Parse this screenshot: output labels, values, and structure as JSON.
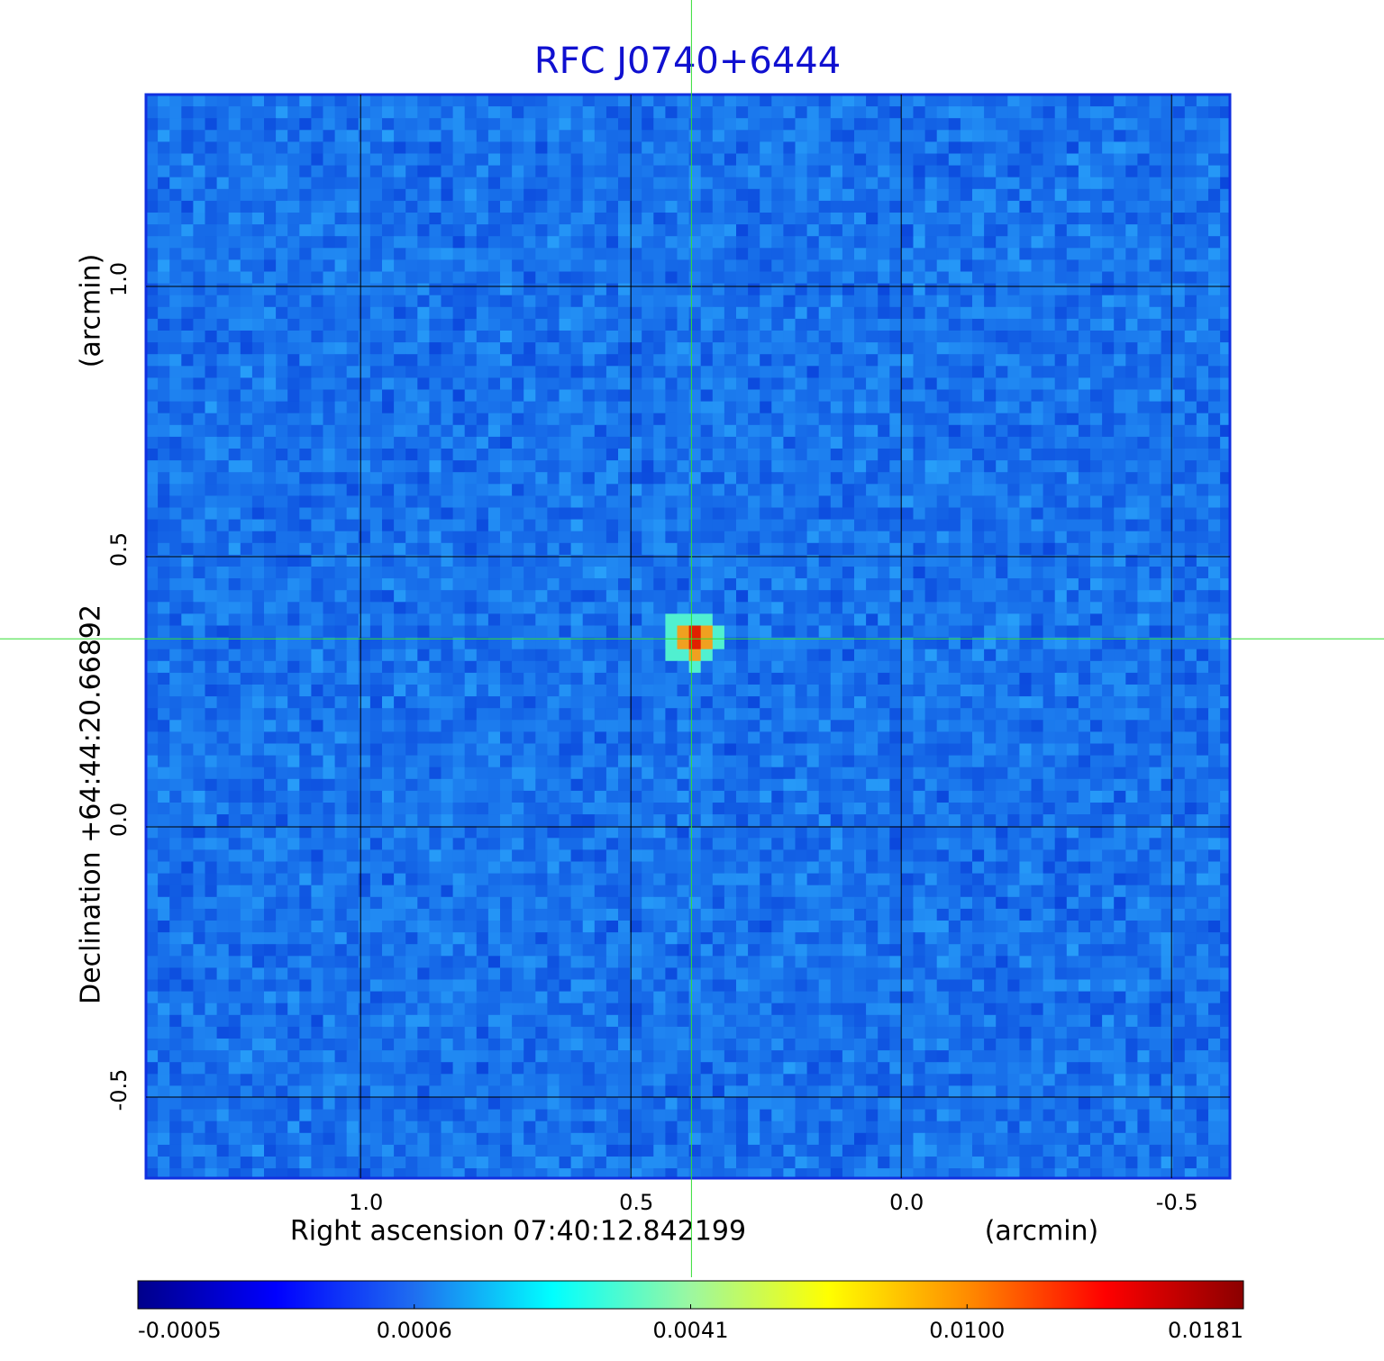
{
  "chart_data": {
    "type": "image",
    "title": "RFC J0740+6444",
    "xlabel": "Right ascension  07:40:12.842199",
    "xunit": "(arcmin)",
    "ylabel": "Declination  +64:44:20.66892",
    "yunit": "(arcmin)",
    "xlim": [
      1.397,
      -0.608
    ],
    "xticks": [
      {
        "value": 1,
        "label": "1.0"
      },
      0.5,
      {
        "value": 0,
        "label": "0.0"
      },
      -0.5
    ],
    "ylim": [
      -0.65,
      1.355
    ],
    "yticks": [
      {
        "value": 1,
        "label": "1.0"
      },
      0.5,
      {
        "value": 0,
        "label": "0.0"
      },
      -0.5
    ],
    "grid": true,
    "frame_color": "#1030e0",
    "title_color": "#1010d0",
    "marker": {
      "x": 0.388,
      "y": 0.348,
      "color": "#33dd33"
    },
    "colorbar": {
      "ticks": [
        -0.0005,
        0.0006,
        0.0041,
        {
          "value": 0.01,
          "label": "0.0100"
        },
        0.0181
      ],
      "colormap": [
        "#00008b",
        "#0000ff",
        "#1f6ef0",
        "#00ffff",
        "#9cf7a0",
        "#ffff00",
        "#ff8c00",
        "#ff0000",
        "#8b0000"
      ]
    }
  }
}
